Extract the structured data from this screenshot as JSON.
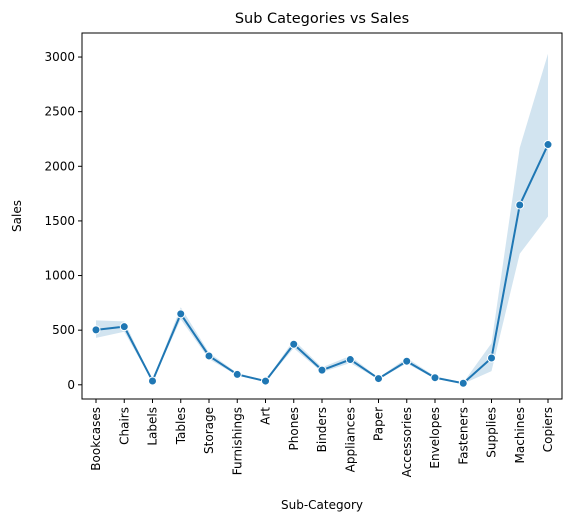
{
  "chart_data": {
    "type": "line",
    "title": "Sub Categories vs Sales",
    "xlabel": "Sub-Category",
    "ylabel": "Sales",
    "ylim": [
      -130,
      3220
    ],
    "yticks": [
      0,
      500,
      1000,
      1500,
      2000,
      2500,
      3000
    ],
    "grid": false,
    "line_color": "#1f77b4",
    "band_color": "#1f77b4",
    "categories": [
      "Bookcases",
      "Chairs",
      "Labels",
      "Tables",
      "Storage",
      "Furnishings",
      "Art",
      "Phones",
      "Binders",
      "Appliances",
      "Paper",
      "Accessories",
      "Envelopes",
      "Fasteners",
      "Supplies",
      "Machines",
      "Copiers"
    ],
    "series": [
      {
        "values": [
          503,
          532,
          35,
          649,
          264,
          95,
          34,
          371,
          134,
          231,
          57,
          216,
          65,
          14,
          245,
          1646,
          2199
        ],
        "ci_lower": [
          430,
          485,
          30,
          600,
          235,
          85,
          30,
          335,
          115,
          200,
          50,
          195,
          55,
          10,
          125,
          1200,
          1540
        ],
        "ci_upper": [
          590,
          580,
          42,
          710,
          295,
          108,
          40,
          410,
          160,
          265,
          65,
          245,
          78,
          20,
          380,
          2170,
          3030
        ]
      }
    ]
  }
}
